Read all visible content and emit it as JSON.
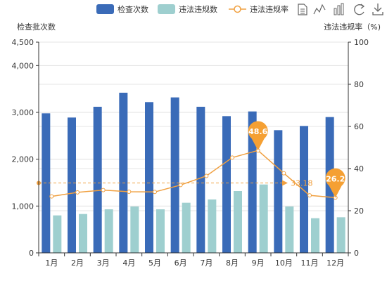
{
  "chart_data": {
    "type": "bar",
    "categories": [
      "1月",
      "2月",
      "3月",
      "4月",
      "5月",
      "6月",
      "7月",
      "8月",
      "9月",
      "10月",
      "11月",
      "12月"
    ],
    "series": [
      {
        "name": "检查次数",
        "type": "bar",
        "axis": "left",
        "color": "#3a6bb8",
        "values": [
          2980,
          2890,
          3120,
          3420,
          3220,
          3320,
          3120,
          2920,
          3020,
          2620,
          2710,
          2900
        ]
      },
      {
        "name": "违法违规数",
        "type": "bar",
        "axis": "left",
        "color": "#9ecfcf",
        "values": [
          800,
          830,
          930,
          990,
          930,
          1070,
          1140,
          1320,
          1460,
          990,
          740,
          760
        ]
      },
      {
        "name": "违法违规率",
        "type": "line",
        "axis": "right",
        "color": "#f0a040",
        "values": [
          26.8,
          28.7,
          29.8,
          29.0,
          28.9,
          32.2,
          36.5,
          45.2,
          48.6,
          37.8,
          27.3,
          26.2
        ]
      }
    ],
    "left_axis": {
      "title": "检查批次数",
      "min": 0,
      "max": 4500,
      "ticks": [
        0,
        1000,
        2000,
        3000,
        4000,
        4500
      ],
      "tick_labels": [
        "0",
        "1,000",
        "2,000",
        "3,000",
        "4,000",
        "4,500"
      ]
    },
    "right_axis": {
      "title": "违法违规率（%)",
      "min": 0,
      "max": 100,
      "ticks": [
        0,
        20,
        40,
        60,
        80,
        100
      ]
    },
    "mark_points": [
      {
        "label": "48.6",
        "category_index": 8,
        "value": 48.6
      },
      {
        "label": "26.2",
        "category_index": 11,
        "value": 26.2
      }
    ],
    "mark_line": {
      "label": "33.18",
      "value": 33.18
    },
    "legend_position": "top-right",
    "grid": true
  },
  "toolbox": {
    "icons": [
      "data-view-icon",
      "line-chart-icon",
      "bar-chart-icon",
      "restore-icon",
      "save-image-icon"
    ]
  }
}
